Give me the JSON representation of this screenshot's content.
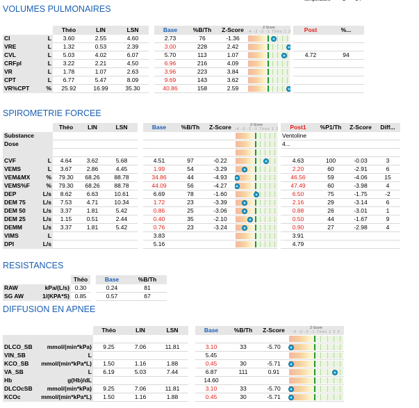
{
  "top_note": [
    "temperature",
    "°C",
    "24"
  ],
  "zscore_header": {
    "title": "Z-Score",
    "scale": "-4 -3 -2 -1 Théo 1 2 3"
  },
  "sections": [
    {
      "title": "VOLUMES PULMONAIRES",
      "headers": [
        "Théo",
        "LIN",
        "LSN",
        "",
        "Base",
        "%B/Th",
        "Z-Score",
        "",
        "",
        "Post",
        "%..."
      ],
      "rows": [
        {
          "name": "CI",
          "unit": "L",
          "theo": "3.60",
          "lin": "2.55",
          "lsn": "4.60",
          "base": "2.73",
          "base_red": false,
          "pct": "76",
          "z": "-1.36",
          "zpos": 0.61,
          "post": "",
          "ppct": ""
        },
        {
          "name": "VRE",
          "unit": "L",
          "theo": "1.32",
          "lin": "0.53",
          "lsn": "2.39",
          "base": "3.00",
          "base_red": true,
          "pct": "228",
          "z": "2.42",
          "zpos": 0.99,
          "post": "",
          "ppct": ""
        },
        {
          "name": "CVL",
          "unit": "L",
          "theo": "5.03",
          "lin": "4.02",
          "lsn": "6.07",
          "base": "5.70",
          "base_red": false,
          "pct": "113",
          "z": "1.07",
          "zpos": 0.86,
          "post": "4.72",
          "ppct": "94"
        },
        {
          "name": "CRFpl",
          "unit": "L",
          "theo": "3.22",
          "lin": "2.21",
          "lsn": "4.50",
          "base": "6.96",
          "base_red": true,
          "pct": "216",
          "z": "4.09",
          "zpos": null,
          "post": "",
          "ppct": ""
        },
        {
          "name": "VR",
          "unit": "L",
          "theo": "1.78",
          "lin": "1.07",
          "lsn": "2.63",
          "base": "3.96",
          "base_red": true,
          "pct": "223",
          "z": "3.84",
          "zpos": null,
          "post": "",
          "ppct": ""
        },
        {
          "name": "CPT",
          "unit": "L",
          "theo": "6.77",
          "lin": "5.47",
          "lsn": "8.09",
          "base": "9.69",
          "base_red": true,
          "pct": "143",
          "z": "3.62",
          "zpos": null,
          "post": "",
          "ppct": ""
        },
        {
          "name": "VR%CPT",
          "unit": "%",
          "theo": "25.92",
          "lin": "16.99",
          "lsn": "35.30",
          "base": "40.86",
          "base_red": true,
          "pct": "158",
          "z": "2.59",
          "zpos": 0.99,
          "post": "",
          "ppct": ""
        }
      ]
    },
    {
      "title": "SPIROMETRIE FORCEE",
      "headers": [
        "Théo",
        "LIN",
        "LSN",
        "",
        "Base",
        "%B/Th",
        "Z-Score",
        "",
        "",
        "Post1",
        "%P1/Th",
        "Z-Score",
        "Diff..."
      ],
      "rows": [
        {
          "name": "Substance",
          "unit": "",
          "theo": "",
          "lin": "",
          "lsn": "",
          "base": "",
          "base_red": false,
          "pct": "",
          "z": "",
          "zpos": null,
          "post": "Ventoline",
          "post_red": false,
          "ppct": "",
          "pz": "",
          "diff": ""
        },
        {
          "name": "Dose",
          "unit": "",
          "theo": "",
          "lin": "",
          "lsn": "",
          "base": "",
          "base_red": false,
          "pct": "",
          "z": "",
          "zpos": null,
          "post": "4...",
          "post_red": false,
          "ppct": "",
          "pz": "",
          "diff": ""
        },
        {
          "name": "",
          "unit": "",
          "theo": "",
          "lin": "",
          "lsn": "",
          "base": "",
          "base_red": false,
          "pct": "",
          "z": "",
          "zpos": null,
          "post": "",
          "post_red": false,
          "ppct": "",
          "pz": "",
          "diff": ""
        },
        {
          "name": "CVF",
          "unit": "L",
          "theo": "4.64",
          "lin": "3.62",
          "lsn": "5.68",
          "base": "4.51",
          "base_red": false,
          "pct": "97",
          "z": "-0.22",
          "zpos": 0.73,
          "post": "4.63",
          "post_red": false,
          "ppct": "100",
          "pz": "-0.03",
          "diff": "3"
        },
        {
          "name": "VEMS",
          "unit": "L",
          "theo": "3.67",
          "lin": "2.86",
          "lsn": "4.45",
          "base": "1.99",
          "base_red": true,
          "pct": "54",
          "z": "-3.29",
          "zpos": 0.22,
          "post": "2.20",
          "post_red": true,
          "ppct": "60",
          "pz": "-2.91",
          "diff": "6"
        },
        {
          "name": "VEM&MX",
          "unit": "%",
          "theo": "79.30",
          "lin": "68.26",
          "lsn": "88.78",
          "base": "34.86",
          "base_red": true,
          "pct": "44",
          "z": "-4.93",
          "zpos": 0.04,
          "post": "46.56",
          "post_red": true,
          "ppct": "59",
          "pz": "-4.06",
          "diff": "15"
        },
        {
          "name": "VEMS%F",
          "unit": "%",
          "theo": "79.30",
          "lin": "68.26",
          "lsn": "88.78",
          "base": "44.09",
          "base_red": true,
          "pct": "56",
          "z": "-4.27",
          "zpos": 0.04,
          "post": "47.49",
          "post_red": true,
          "ppct": "60",
          "pz": "-3.98",
          "diff": "4"
        },
        {
          "name": "DEP",
          "unit": "L/s",
          "theo": "8.62",
          "lin": "6.63",
          "lsn": "10.61",
          "base": "6.69",
          "base_red": false,
          "pct": "78",
          "z": "-1.60",
          "zpos": 0.5,
          "post": "6.50",
          "post_red": true,
          "ppct": "75",
          "pz": "-1.75",
          "diff": "-2"
        },
        {
          "name": "DEM 75",
          "unit": "L/s",
          "theo": "7.53",
          "lin": "4.71",
          "lsn": "10.34",
          "base": "1.72",
          "base_red": true,
          "pct": "23",
          "z": "-3.39",
          "zpos": 0.22,
          "post": "2.16",
          "post_red": true,
          "ppct": "29",
          "pz": "-3.14",
          "diff": "6"
        },
        {
          "name": "DEM 50",
          "unit": "L/s",
          "theo": "3.37",
          "lin": "1.81",
          "lsn": "5.42",
          "base": "0.86",
          "base_red": true,
          "pct": "25",
          "z": "-3.06",
          "zpos": 0.22,
          "post": "0.88",
          "post_red": true,
          "ppct": "26",
          "pz": "-3.01",
          "diff": "1"
        },
        {
          "name": "DEM 25",
          "unit": "L/s",
          "theo": "1.15",
          "lin": "0.51",
          "lsn": "2.44",
          "base": "0.40",
          "base_red": true,
          "pct": "35",
          "z": "-2.10",
          "zpos": 0.35,
          "post": "0.50",
          "post_red": true,
          "ppct": "44",
          "pz": "-1.67",
          "diff": "9"
        },
        {
          "name": "DEMM",
          "unit": "L/s",
          "theo": "3.37",
          "lin": "1.81",
          "lsn": "5.42",
          "base": "0.76",
          "base_red": true,
          "pct": "23",
          "z": "-3.24",
          "zpos": 0.22,
          "post": "0.90",
          "post_red": true,
          "ppct": "27",
          "pz": "-2.98",
          "diff": "4"
        },
        {
          "name": "VIMS",
          "unit": "L",
          "theo": "",
          "lin": "",
          "lsn": "",
          "base": "3.83",
          "base_red": false,
          "pct": "",
          "z": "",
          "zpos": null,
          "post": "3.91",
          "post_red": false,
          "ppct": "",
          "pz": "",
          "diff": ""
        },
        {
          "name": "DPI",
          "unit": "L/s",
          "theo": "",
          "lin": "",
          "lsn": "",
          "base": "5.16",
          "base_red": false,
          "pct": "",
          "z": "",
          "zpos": null,
          "post": "4.79",
          "post_red": false,
          "ppct": "",
          "pz": "",
          "diff": ""
        }
      ]
    },
    {
      "title": "RESISTANCES",
      "headers": [
        "Théo",
        "",
        "Base",
        "%B/Th"
      ],
      "rows": [
        {
          "name": "RAW",
          "unit": "kPa/(L/s)",
          "theo": "0.30",
          "base": "0.24",
          "pct": "81"
        },
        {
          "name": "SG AW",
          "unit": "1/(KPA*S)",
          "theo": "0.85",
          "base": "0.57",
          "pct": "67"
        }
      ]
    },
    {
      "title": "DIFFUSION EN APNEE",
      "headers": [
        "Théo",
        "LIN",
        "LSN",
        "",
        "Base",
        "%B/Th",
        "Z-Score",
        ""
      ],
      "rows": [
        {
          "name": "",
          "unit": "",
          "theo": "",
          "lin": "",
          "lsn": "",
          "base": "",
          "base_red": false,
          "pct": "",
          "z": "",
          "zpos": null
        },
        {
          "name": "DLCO_SB",
          "unit": "mmol/(min*kPa)",
          "theo": "9.25",
          "lin": "7.06",
          "lsn": "11.81",
          "base": "3.10",
          "base_red": true,
          "pct": "33",
          "z": "-5.70",
          "zpos": 0.04
        },
        {
          "name": "VIN_SB",
          "unit": "L",
          "theo": "",
          "lin": "",
          "lsn": "",
          "base": "5.45",
          "base_red": false,
          "pct": "",
          "z": "",
          "zpos": null
        },
        {
          "name": "KCO_SB",
          "unit": "mmol/(min*kPa*L)",
          "theo": "1.50",
          "lin": "1.16",
          "lsn": "1.88",
          "base": "0.45",
          "base_red": true,
          "pct": "30",
          "z": "-5.71",
          "zpos": 0.04
        },
        {
          "name": "VA_SB",
          "unit": "L",
          "theo": "6.19",
          "lin": "5.03",
          "lsn": "7.44",
          "base": "6.87",
          "base_red": false,
          "pct": "111",
          "z": "0.91",
          "zpos": 0.84
        },
        {
          "name": "Hb",
          "unit": "g(Hb)/dL",
          "theo": "",
          "lin": "",
          "lsn": "",
          "base": "14.60",
          "base_red": false,
          "pct": "",
          "z": "",
          "zpos": null
        },
        {
          "name": "DLCOcSB",
          "unit": "mmol/(min*kPa)",
          "theo": "9.25",
          "lin": "7.06",
          "lsn": "11.81",
          "base": "3.10",
          "base_red": true,
          "pct": "33",
          "z": "-5.70",
          "zpos": 0.04
        },
        {
          "name": "KCOc",
          "unit": "mmol/(min*kPa*L)",
          "theo": "1.50",
          "lin": "1.16",
          "lsn": "1.88",
          "base": "0.45",
          "base_red": true,
          "pct": "30",
          "z": "-5.71",
          "zpos": 0.04
        }
      ]
    }
  ]
}
